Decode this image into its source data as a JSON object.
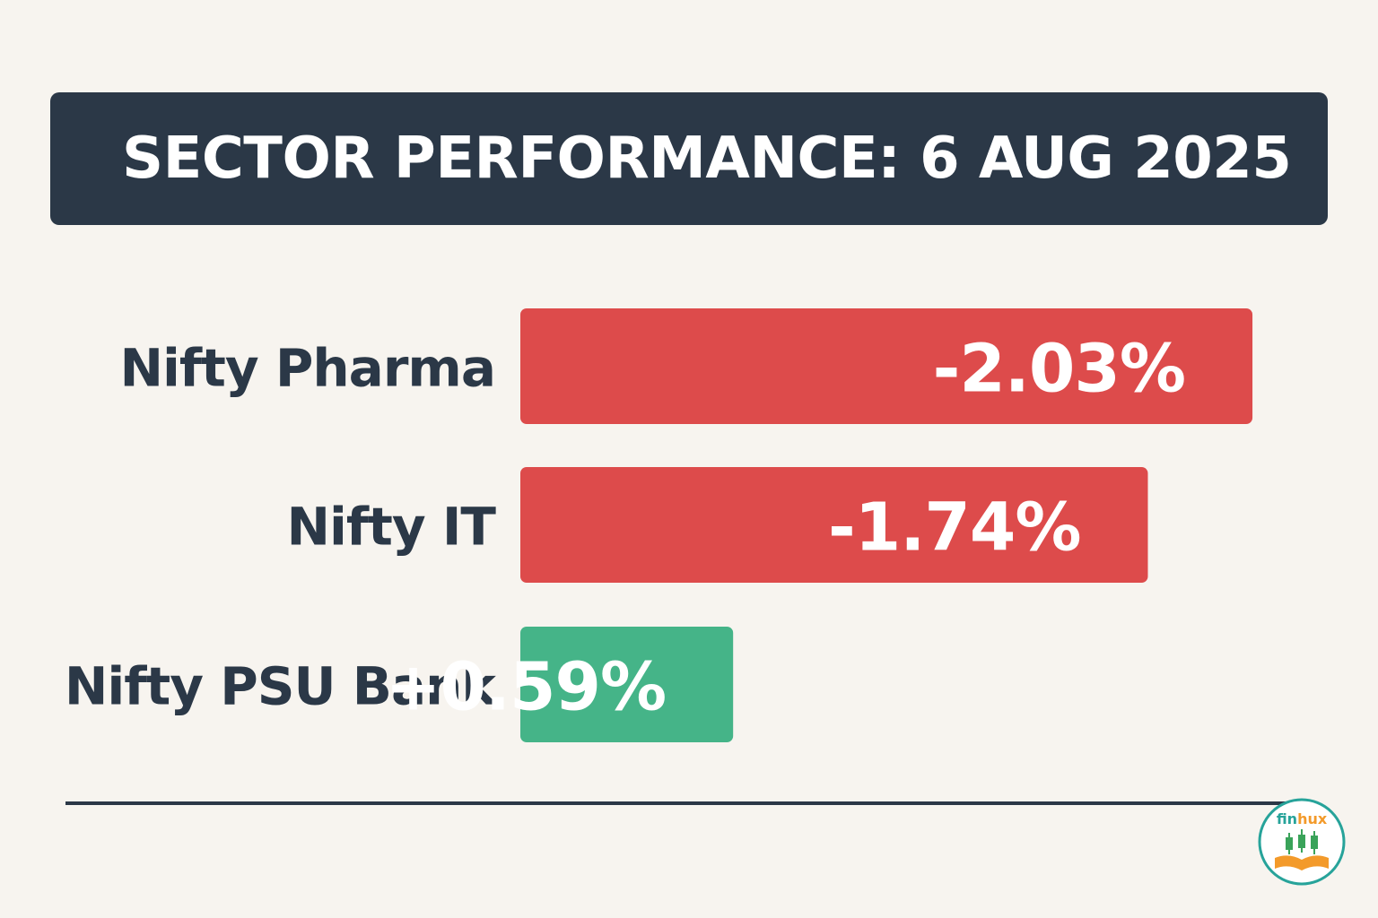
{
  "chart_data": {
    "type": "bar",
    "orientation": "horizontal",
    "title": "SECTOR PERFORMANCE: 6 AUG 2025",
    "categories": [
      "Nifty Pharma",
      "Nifty IT",
      "Nifty PSU Bank"
    ],
    "values": [
      -2.03,
      -1.74,
      0.59
    ],
    "value_labels": [
      "-2.03%",
      "-1.74%",
      "+0.59%"
    ],
    "xlabel": "",
    "ylabel": "",
    "grid": false,
    "colors": {
      "negative": "#dd4b4b",
      "positive": "#45b488",
      "label_text": "#2b3847",
      "value_text": "#ffffff"
    }
  },
  "logo": {
    "text": "finhux",
    "colors": {
      "ring": "#27a39a",
      "text_fin": "#27a39a",
      "text_hux": "#f39a2a",
      "candles": "#3aa35a",
      "book": "#f39a2a"
    }
  }
}
